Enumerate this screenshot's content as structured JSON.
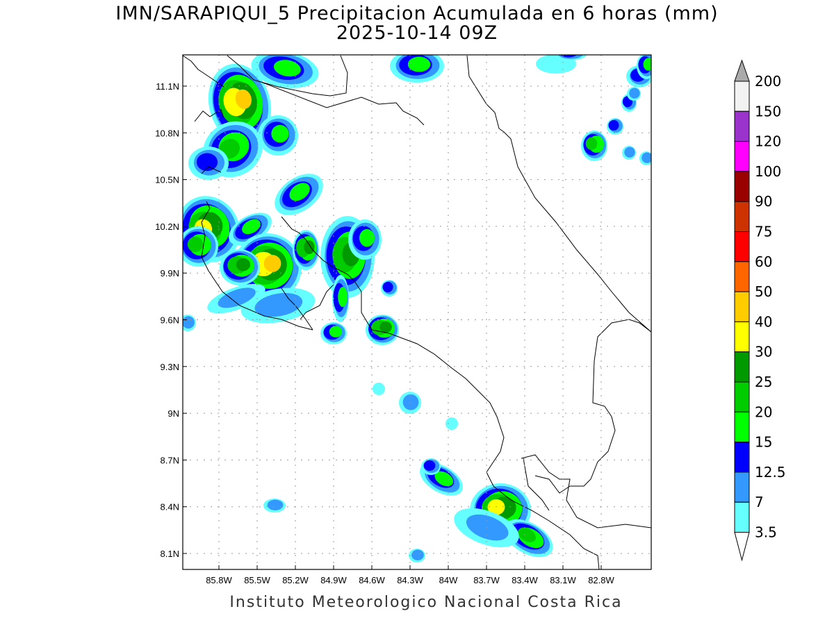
{
  "title": {
    "line1": "IMN/SARAPIQUI_5 Precipitacion Acumulada en 6 horas (mm)",
    "line2": "2025-10-14 09Z"
  },
  "footer": "Instituto Meteorologico Nacional Costa Rica",
  "map": {
    "lon_ticks": [
      "85.8W",
      "85.5W",
      "85.2W",
      "84.9W",
      "84.6W",
      "84.3W",
      "84W",
      "83.7W",
      "83.4W",
      "83.1W",
      "82.8W"
    ],
    "lat_ticks": [
      "11.1N",
      "10.8N",
      "10.5N",
      "10.2N",
      "9.9N",
      "9.6N",
      "9.3N",
      "9N",
      "8.7N",
      "8.4N",
      "8.1N"
    ],
    "grid": true
  },
  "colorbar": {
    "labels": [
      "200",
      "150",
      "120",
      "100",
      "90",
      "75",
      "60",
      "50",
      "40",
      "30",
      "25",
      "20",
      "15",
      "12.5",
      "7",
      "3.5"
    ],
    "colors": [
      "#f2f2f2",
      "#9933cc",
      "#ff00ff",
      "#990000",
      "#cc3300",
      "#ff0000",
      "#ff6600",
      "#ffcc00",
      "#ffff00",
      "#009900",
      "#00cc00",
      "#00ff00",
      "#0000ff",
      "#3399ff",
      "#66ffff"
    ],
    "over_color": "#aaaaaa",
    "under_color": "#ffffff"
  }
}
